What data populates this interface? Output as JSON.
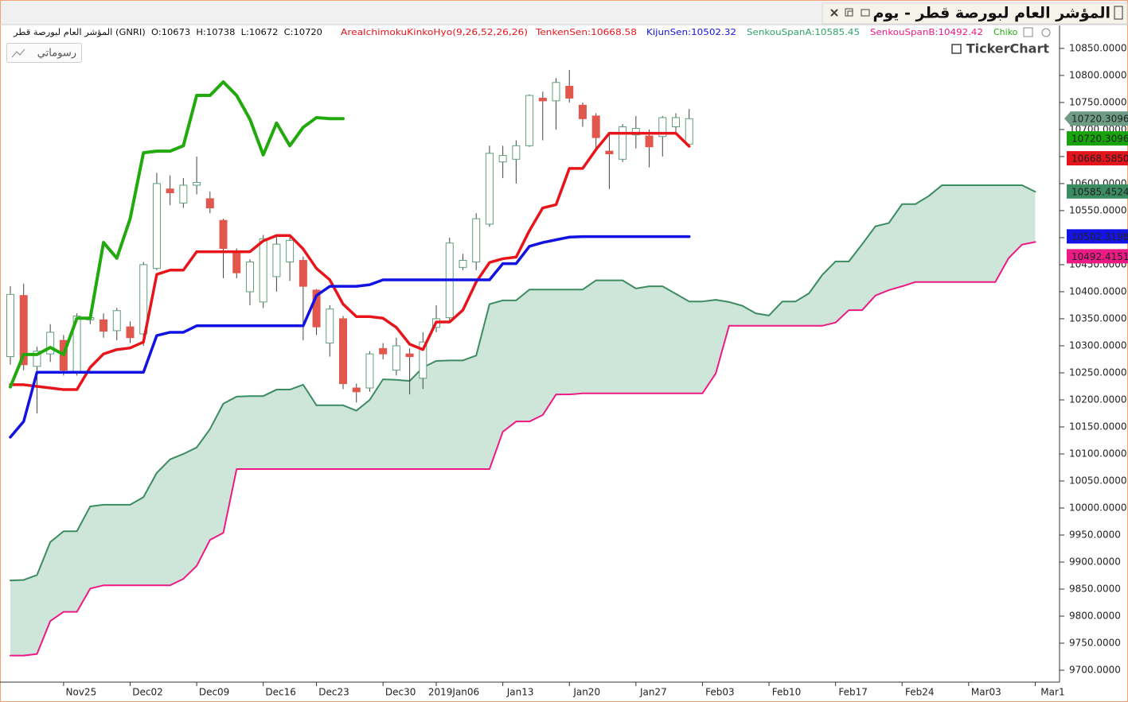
{
  "chart_data": {
    "type": "candlestick",
    "title": "المؤشر العام لبورصة قطر - يوم",
    "indicator": "AreaIchimokuKinkoHyo(9,26,52,26,26)",
    "categories": [
      null,
      null,
      null,
      null,
      "Nov25",
      null,
      null,
      null,
      null,
      "Dec02",
      null,
      null,
      null,
      null,
      "Dec09",
      null,
      null,
      null,
      null,
      "Dec16",
      null,
      null,
      null,
      "Dec23",
      null,
      null,
      null,
      null,
      "Dec30",
      null,
      null,
      null,
      "2019Jan06",
      null,
      null,
      null,
      null,
      "Jan13",
      null,
      null,
      null,
      null,
      "Jan20",
      null,
      null,
      null,
      null,
      "Jan27",
      null,
      null,
      null,
      null,
      "Feb03",
      null,
      null,
      null,
      null,
      "Feb10",
      null,
      null,
      null,
      null,
      "Feb17",
      null,
      null,
      null,
      null,
      "Feb24",
      null,
      null,
      null,
      null,
      "Mar03",
      null,
      null,
      null,
      null,
      "Mar1"
    ],
    "ohlc": {
      "name": "المؤشر العام لبورصة قطر (GNRI)  O:10673  H:10738  L:10672  C:10720",
      "up_color": "#5f9f7c",
      "down_color": "#e2574c",
      "open": [
        10280,
        10393,
        10262,
        10285,
        10310,
        10250,
        10348,
        10348,
        10328,
        10335,
        10322,
        10443,
        10590,
        10564,
        10597,
        10572,
        10532,
        10472,
        10400,
        10381,
        10428,
        10455,
        10458,
        10403,
        10305,
        10350,
        10222,
        10222,
        10295,
        10255,
        10285,
        10240,
        10334,
        10352,
        10445,
        10455,
        10525,
        10640,
        10645,
        10670,
        10758,
        10753,
        10780,
        10745,
        10725,
        10660,
        10645,
        10690,
        10688,
        10687,
        10705,
        10673,
        null,
        null,
        null,
        null,
        null,
        null,
        null,
        null,
        null,
        null,
        null,
        null,
        null,
        null,
        null,
        null,
        null,
        null,
        null,
        null,
        null,
        null,
        null,
        null,
        null,
        null
      ],
      "high": [
        10410,
        10415,
        10298,
        10340,
        10320,
        10360,
        10360,
        10360,
        10370,
        10345,
        10455,
        10620,
        10615,
        10610,
        10650,
        10585,
        10535,
        10480,
        10460,
        10505,
        10505,
        10505,
        10465,
        10405,
        10375,
        10355,
        10230,
        10290,
        10305,
        10315,
        10295,
        10325,
        10375,
        10500,
        10470,
        10545,
        10670,
        10670,
        10680,
        10765,
        10770,
        10795,
        10810,
        10750,
        10730,
        10690,
        10710,
        10725,
        10700,
        10725,
        10730,
        10738,
        null,
        null,
        null,
        null,
        null,
        null,
        null,
        null,
        null,
        null,
        null,
        null,
        null,
        null,
        null,
        null,
        null,
        null,
        null,
        null,
        null,
        null,
        null,
        null,
        null,
        null
      ],
      "low": [
        10265,
        10255,
        10175,
        10270,
        10245,
        10245,
        10340,
        10315,
        10310,
        10305,
        10300,
        10440,
        10560,
        10555,
        10580,
        10545,
        10425,
        10425,
        10375,
        10370,
        10400,
        10420,
        10310,
        10320,
        10280,
        10220,
        10195,
        10215,
        10275,
        10245,
        10210,
        10220,
        10325,
        10345,
        10440,
        10440,
        10520,
        10610,
        10600,
        10668,
        10680,
        10700,
        10750,
        10705,
        10665,
        10590,
        10640,
        10665,
        10630,
        10650,
        10690,
        10672,
        null,
        null,
        null,
        null,
        null,
        null,
        null,
        null,
        null,
        null,
        null,
        null,
        null,
        null,
        null,
        null,
        null,
        null,
        null,
        null,
        null,
        null,
        null,
        null,
        null,
        null
      ],
      "close": [
        10395,
        10265,
        10290,
        10325,
        10255,
        10355,
        10352,
        10327,
        10365,
        10315,
        10450,
        10600,
        10583,
        10597,
        10602,
        10555,
        10480,
        10435,
        10455,
        10498,
        10488,
        10495,
        10410,
        10335,
        10368,
        10230,
        10215,
        10285,
        10285,
        10300,
        10280,
        10307,
        10350,
        10490,
        10458,
        10535,
        10656,
        10652,
        10670,
        10763,
        10753,
        10787,
        10758,
        10720,
        10685,
        10655,
        10705,
        10702,
        10668,
        10722,
        10722,
        10720,
        null,
        null,
        null,
        null,
        null,
        null,
        null,
        null,
        null,
        null,
        null,
        null,
        null,
        null,
        null,
        null,
        null,
        null,
        null,
        null,
        null,
        null,
        null,
        null,
        null,
        null
      ]
    },
    "series": [
      {
        "name": "TenkenSen:10668.58",
        "color": "#e8141b",
        "values": [
          10228,
          10228,
          10225,
          10222,
          10219,
          10219,
          10260,
          10285,
          10293,
          10296,
          10307,
          10432,
          10440,
          10440,
          10474,
          10474,
          10474,
          10474,
          10474,
          10494,
          10504,
          10504,
          10479,
          10443,
          10422,
          10377,
          10354,
          10354,
          10351,
          10334,
          10303,
          10293,
          10344,
          10344,
          10366,
          10418,
          10454,
          10461,
          10464,
          10513,
          10555,
          10561,
          10628,
          10628,
          10663,
          10693,
          10693,
          10693,
          10693,
          10693,
          10693,
          10669,
          null,
          null,
          null,
          null,
          null,
          null,
          null,
          null,
          null,
          null,
          null,
          null,
          null,
          null,
          null,
          null,
          null,
          null,
          null,
          null,
          null,
          null,
          null,
          null,
          null,
          null
        ]
      },
      {
        "name": "KijunSen:10502.32",
        "color": "#1212e2",
        "values": [
          10131,
          10160,
          10251,
          10251,
          10251,
          10251,
          10251,
          10251,
          10251,
          10251,
          10251,
          10319,
          10325,
          10325,
          10337,
          10337,
          10337,
          10337,
          10337,
          10337,
          10337,
          10337,
          10337,
          10393,
          10410,
          10410,
          10410,
          10413,
          10422,
          10422,
          10422,
          10422,
          10422,
          10422,
          10422,
          10422,
          10422,
          10452,
          10452,
          10484,
          10491,
          10496,
          10501,
          10502,
          10502,
          10502,
          10502,
          10502,
          10502,
          10502,
          10502,
          10502,
          null,
          null,
          null,
          null,
          null,
          null,
          null,
          null,
          null,
          null,
          null,
          null,
          null,
          null,
          null,
          null,
          null,
          null,
          null,
          null,
          null,
          null,
          null,
          null,
          null,
          null
        ]
      },
      {
        "name": "SenkouSpanA:10585.45",
        "color": "#3c8c62",
        "values": [
          9866,
          9867,
          9876,
          9937,
          9957,
          9957,
          10003,
          10006,
          10006,
          10006,
          10020,
          10065,
          10090,
          10100,
          10112,
          10146,
          10193,
          10206,
          10207,
          10207,
          10219,
          10219,
          10228,
          10190,
          10190,
          10190,
          10180,
          10200,
          10238,
          10237,
          10235,
          10260,
          10272,
          10273,
          10273,
          10282,
          10377,
          10384,
          10384,
          10404,
          10404,
          10404,
          10404,
          10404,
          10421,
          10421,
          10421,
          10406,
          10410,
          10410,
          10396,
          10382,
          10382,
          10385,
          10381,
          10374,
          10360,
          10356,
          10382,
          10382,
          10397,
          10431,
          10456,
          10456,
          10488,
          10521,
          10527,
          10562,
          10562,
          10577,
          10597,
          10597,
          10597,
          10597,
          10597,
          10597,
          10597,
          10585
        ]
      },
      {
        "name": "SenkouSpanB:10492.42",
        "color": "#ec1a84",
        "values": [
          9727,
          9727,
          9730,
          9791,
          9808,
          9808,
          9851,
          9857,
          9857,
          9857,
          9857,
          9857,
          9857,
          9869,
          9893,
          9941,
          9954,
          10072,
          10072,
          10072,
          10072,
          10072,
          10072,
          10072,
          10072,
          10072,
          10072,
          10072,
          10072,
          10072,
          10072,
          10072,
          10072,
          10072,
          10072,
          10072,
          10072,
          10141,
          10160,
          10160,
          10172,
          10210,
          10210,
          10212,
          10212,
          10212,
          10212,
          10212,
          10212,
          10212,
          10212,
          10212,
          10212,
          10249,
          10337,
          10337,
          10337,
          10337,
          10337,
          10337,
          10337,
          10337,
          10343,
          10366,
          10366,
          10393,
          10403,
          10410,
          10418,
          10418,
          10418,
          10418,
          10418,
          10418,
          10418,
          10462,
          10487,
          10492
        ]
      },
      {
        "name": "Chiko",
        "color": "#22a90e",
        "values": [
          10224,
          10284,
          10284,
          10297,
          10284,
          10351,
          10351,
          10491,
          10462,
          10535,
          10657,
          10660,
          10660,
          10670,
          10763,
          10763,
          10788,
          10763,
          10719,
          10653,
          10712,
          10670,
          10704,
          10722,
          10720,
          10720,
          null,
          null,
          null,
          null,
          null,
          null,
          null,
          null,
          null,
          null,
          null,
          null,
          null,
          null,
          null,
          null,
          null,
          null,
          null,
          null,
          null,
          null,
          null,
          null,
          null,
          null,
          null,
          null,
          null,
          null,
          null,
          null,
          null,
          null,
          null,
          null,
          null,
          null,
          null,
          null,
          null,
          null,
          null,
          null,
          null,
          null,
          null,
          null,
          null,
          null,
          null,
          null
        ]
      }
    ],
    "cloud_color": "#cde6d9",
    "ylim": [
      9678,
      10866
    ],
    "yticks": [
      {
        "value": 9700,
        "label": "9700.0000"
      },
      {
        "value": 9750,
        "label": "9750.0000"
      },
      {
        "value": 9800,
        "label": "9800.0000"
      },
      {
        "value": 9850,
        "label": "9850.0000"
      },
      {
        "value": 9900,
        "label": "9900.0000"
      },
      {
        "value": 9950,
        "label": "9950.0000"
      },
      {
        "value": 10000,
        "label": "10000.0000"
      },
      {
        "value": 10050,
        "label": "10050.0000"
      },
      {
        "value": 10100,
        "label": "10100.0000"
      },
      {
        "value": 10150,
        "label": "10150.0000"
      },
      {
        "value": 10200,
        "label": "10200.0000"
      },
      {
        "value": 10250,
        "label": "10250.0000"
      },
      {
        "value": 10300,
        "label": "10300.0000"
      },
      {
        "value": 10350,
        "label": "10350.0000"
      },
      {
        "value": 10400,
        "label": "10400.0000"
      },
      {
        "value": 10450,
        "label": "10450.0000"
      },
      {
        "value": 10500,
        "label": "10500.0000"
      },
      {
        "value": 10550,
        "label": "10550.0000"
      },
      {
        "value": 10600,
        "label": "10600.0000"
      },
      {
        "value": 10650,
        "label": "10650.0000"
      },
      {
        "value": 10700,
        "label": "10700.0000"
      },
      {
        "value": 10750,
        "label": "10750.0000"
      },
      {
        "value": 10800,
        "label": "10800.0000"
      },
      {
        "value": 10850,
        "label": "10850.0000"
      }
    ],
    "price_tags": [
      {
        "value": 10720.3096,
        "label": "10720.3096",
        "color": "#6e9c84"
      },
      {
        "value": 10720.3096,
        "label": "10720.3096",
        "color": "#18a40c"
      },
      {
        "value": 10668.585,
        "label": "10668.5850",
        "color": "#e3141c"
      },
      {
        "value": 10585.4524,
        "label": "10585.4524",
        "color": "#3c8c62"
      },
      {
        "value": 10502.3198,
        "label": "10502.3198",
        "color": "#1414e6"
      },
      {
        "value": 10492.4151,
        "label": "10492.4151",
        "color": "#ec1a84"
      }
    ],
    "grid": false
  },
  "ui": {
    "drawings_button": "رسوماتي",
    "watermark": "TickerChart"
  }
}
